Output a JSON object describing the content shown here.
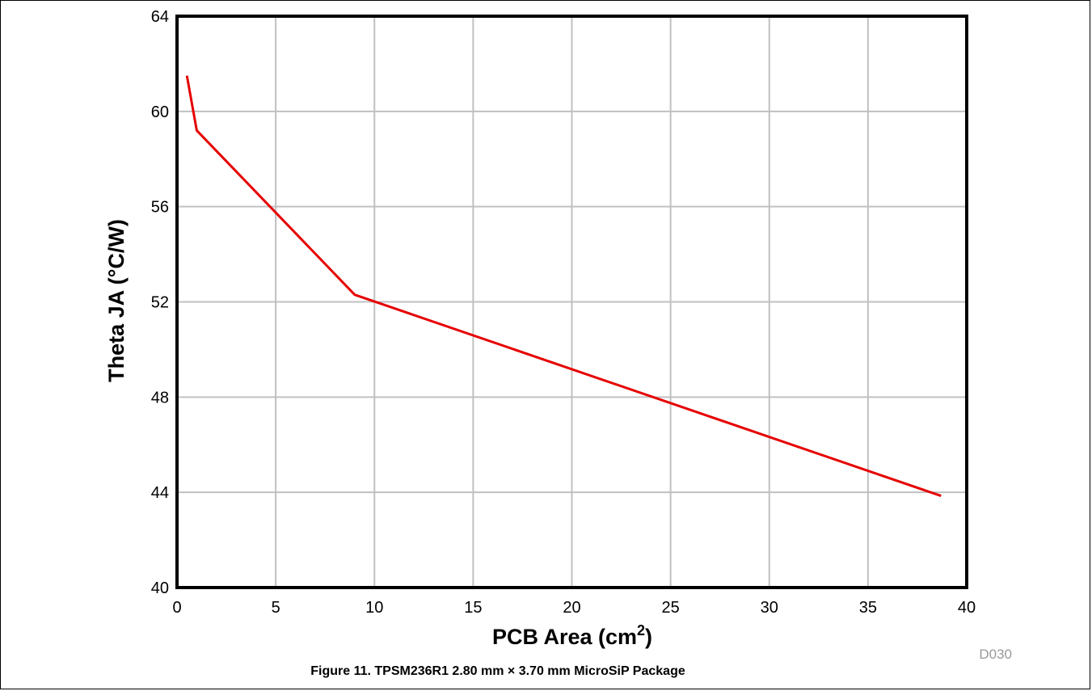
{
  "chart_data": {
    "type": "line",
    "xlabel": "PCB Area (cm",
    "xlabel_sup": "2",
    "xlabel_close": ")",
    "ylabel": "Theta JA (°C/W)",
    "xlim": [
      0,
      40
    ],
    "ylim": [
      40,
      64
    ],
    "xticks": [
      0,
      5,
      10,
      15,
      20,
      25,
      30,
      35,
      40
    ],
    "yticks": [
      40,
      44,
      48,
      52,
      56,
      60,
      64
    ],
    "grid": true,
    "series": [
      {
        "color": "#e60000",
        "x": [
          0.5,
          1,
          9,
          38.7
        ],
        "y": [
          61.5,
          59.2,
          52.3,
          43.85
        ]
      }
    ]
  },
  "figure_code": "D030",
  "caption": "Figure 11. TPSM236R1 2.80 mm × 3.70 mm MicroSiP Package"
}
